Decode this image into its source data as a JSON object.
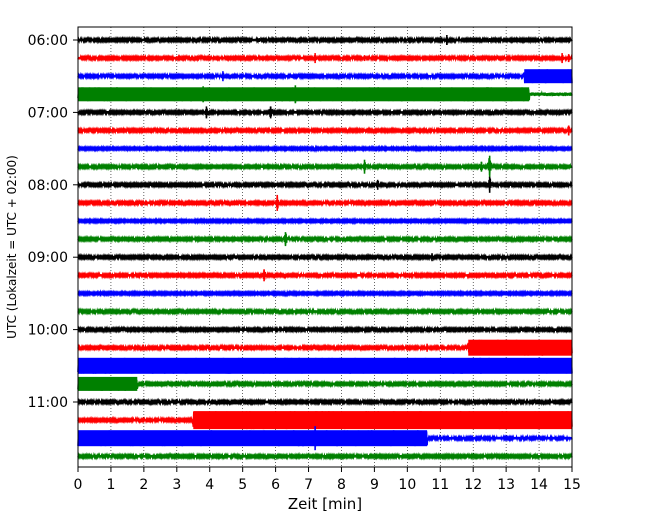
{
  "chart_data": {
    "type": "line",
    "xlabel": "Zeit  [min]",
    "ylabel": "UTC (Lokalzeit = UTC + 02:00)",
    "xlim": [
      0,
      15
    ],
    "x_ticks": [
      0,
      1,
      2,
      3,
      4,
      5,
      6,
      7,
      8,
      9,
      10,
      11,
      12,
      13,
      14,
      15
    ],
    "x_tick_labels": [
      "0",
      "1",
      "2",
      "3",
      "4",
      "5",
      "6",
      "7",
      "8",
      "9",
      "10",
      "11",
      "12",
      "13",
      "14",
      "15"
    ],
    "y_tick_labels": [
      "06:00",
      "07:00",
      "08:00",
      "09:00",
      "10:00",
      "11:00"
    ],
    "y_tick_rows": [
      0,
      4,
      8,
      12,
      16,
      20
    ],
    "grid": {
      "x": "dotted",
      "y": false
    },
    "colors": [
      "#000000",
      "#ff0000",
      "#0000ff",
      "#008000"
    ],
    "rows": [
      {
        "start": "06:00",
        "color": "#000000",
        "noise": 1.2,
        "events": [
          {
            "t": 5.5,
            "a": 2
          },
          {
            "t": 11.2,
            "a": 5
          },
          {
            "t": 12.5,
            "a": 2
          }
        ]
      },
      {
        "start": "06:15",
        "color": "#ff0000",
        "noise": 1.2,
        "events": [
          {
            "t": 3.0,
            "a": 2
          },
          {
            "t": 7.2,
            "a": 5
          },
          {
            "t": 8.7,
            "a": 3
          },
          {
            "t": 14.7,
            "a": 5
          },
          {
            "t": 14.9,
            "a": 4
          }
        ]
      },
      {
        "start": "06:30",
        "color": "#0000ff",
        "noise": 1.2,
        "events": [
          {
            "t": 4.4,
            "a": 5
          },
          {
            "t": 6.5,
            "a": 2
          },
          {
            "t": 9.0,
            "a": 2
          }
        ],
        "bands": [
          {
            "from": 13.55,
            "to": 15.0,
            "a": 7
          }
        ]
      },
      {
        "start": "06:45",
        "color": "#008000",
        "noise": 1.8,
        "events": [
          {
            "t": 3.8,
            "a": 8
          },
          {
            "t": 6.6,
            "a": 9
          },
          {
            "t": 12.7,
            "a": 6
          }
        ],
        "bands": [
          {
            "from": 0.0,
            "to": 13.7,
            "a": 7
          }
        ]
      },
      {
        "start": "07:00",
        "color": "#000000",
        "noise": 1.2,
        "events": [
          {
            "t": 3.9,
            "a": 6
          },
          {
            "t": 5.85,
            "a": 6
          },
          {
            "t": 9.2,
            "a": 2
          }
        ]
      },
      {
        "start": "07:15",
        "color": "#ff0000",
        "noise": 1.2,
        "events": [
          {
            "t": 14.9,
            "a": 5
          }
        ]
      },
      {
        "start": "07:30",
        "color": "#0000ff",
        "noise": 1.1,
        "events": []
      },
      {
        "start": "07:45",
        "color": "#008000",
        "noise": 1.2,
        "events": [
          {
            "t": 8.7,
            "a": 7
          },
          {
            "t": 12.25,
            "a": 5
          },
          {
            "t": 12.5,
            "a": 11
          }
        ]
      },
      {
        "start": "08:00",
        "color": "#000000",
        "noise": 1.2,
        "events": [
          {
            "t": 6.0,
            "a": 2
          },
          {
            "t": 9.1,
            "a": 5
          },
          {
            "t": 12.5,
            "a": 8
          }
        ]
      },
      {
        "start": "08:15",
        "color": "#ff0000",
        "noise": 1.2,
        "events": [
          {
            "t": 6.05,
            "a": 8
          }
        ]
      },
      {
        "start": "08:30",
        "color": "#0000ff",
        "noise": 1.1,
        "events": []
      },
      {
        "start": "08:45",
        "color": "#008000",
        "noise": 1.2,
        "events": [
          {
            "t": 6.3,
            "a": 7
          },
          {
            "t": 14.0,
            "a": 2
          }
        ]
      },
      {
        "start": "09:00",
        "color": "#000000",
        "noise": 1.2,
        "events": [
          {
            "t": 10.75,
            "a": 4
          },
          {
            "t": 4.8,
            "a": 2
          }
        ]
      },
      {
        "start": "09:15",
        "color": "#ff0000",
        "noise": 1.2,
        "events": [
          {
            "t": 5.65,
            "a": 6
          }
        ]
      },
      {
        "start": "09:30",
        "color": "#0000ff",
        "noise": 1.1,
        "events": [
          {
            "t": 14.0,
            "a": 2
          }
        ]
      },
      {
        "start": "09:45",
        "color": "#008000",
        "noise": 1.2,
        "events": []
      },
      {
        "start": "10:00",
        "color": "#000000",
        "noise": 1.2,
        "events": [
          {
            "t": 3.0,
            "a": 2
          },
          {
            "t": 11.0,
            "a": 2
          }
        ]
      },
      {
        "start": "10:15",
        "color": "#ff0000",
        "noise": 1.2,
        "events": [
          {
            "t": 10.6,
            "a": 4
          }
        ],
        "bands": [
          {
            "from": 11.85,
            "to": 15.0,
            "a": 8
          }
        ]
      },
      {
        "start": "10:30",
        "color": "#0000ff",
        "noise": 1.5,
        "events": [],
        "bands": [
          {
            "from": 0.0,
            "to": 15.0,
            "a": 8
          }
        ]
      },
      {
        "start": "10:45",
        "color": "#008000",
        "noise": 1.2,
        "events": [
          {
            "t": 6.2,
            "a": 2
          }
        ],
        "bands": [
          {
            "from": 0.0,
            "to": 1.8,
            "a": 7
          }
        ]
      },
      {
        "start": "11:00",
        "color": "#000000",
        "noise": 1.2,
        "events": [
          {
            "t": 6.0,
            "a": 2
          }
        ]
      },
      {
        "start": "11:15",
        "color": "#ff0000",
        "noise": 1.2,
        "events": [],
        "bands": [
          {
            "from": 3.5,
            "to": 15.0,
            "a": 9
          }
        ]
      },
      {
        "start": "11:30",
        "color": "#0000ff",
        "noise": 1.3,
        "events": [
          {
            "t": 7.2,
            "a": 12
          }
        ],
        "bands": [
          {
            "from": 0.0,
            "to": 10.6,
            "a": 8
          }
        ]
      },
      {
        "start": "11:45",
        "color": "#008000",
        "noise": 1.2,
        "events": [
          {
            "t": 6.0,
            "a": 2
          }
        ]
      }
    ]
  }
}
